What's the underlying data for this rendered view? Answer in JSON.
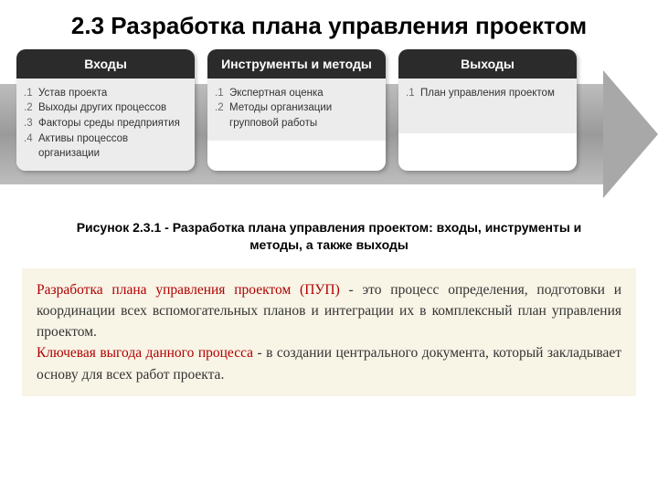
{
  "title": "2.3 Разработка плана управления проектом",
  "diagram": {
    "arrow_gradient_top": "#bdbdbd",
    "arrow_gradient_mid": "#9a9a9a",
    "arrow_head_color": "#a8a8a8",
    "header_bg": "#2b2b2b",
    "header_fg": "#ffffff",
    "body_bg": "#ececec",
    "body_fg": "#333333",
    "num_color": "#6b6b6b",
    "boxes": [
      {
        "title": "Входы",
        "items": [
          {
            "n": ".1",
            "t": "Устав проекта"
          },
          {
            "n": ".2",
            "t": "Выходы других процессов"
          },
          {
            "n": ".3",
            "t": "Факторы среды предприятия"
          },
          {
            "n": ".4",
            "t": "Активы процессов организации"
          }
        ]
      },
      {
        "title": "Инструменты и методы",
        "items": [
          {
            "n": ".1",
            "t": "Экспертная оценка"
          },
          {
            "n": ".2",
            "t": "Методы организации групповой работы"
          }
        ]
      },
      {
        "title": "Выходы",
        "items": [
          {
            "n": ".1",
            "t": "План управления проектом"
          }
        ]
      }
    ]
  },
  "caption_prefix": "Рисунок 2.3.1 - ",
  "caption_rest": "Разработка плана управления проектом: входы, инструменты и методы, а также выходы",
  "textblock": {
    "bg": "#f8f4e6",
    "red": "#b00000",
    "p1_red": "Разработка плана управления проектом (ПУП)",
    "p1_rest": " - это процесс определения, подготовки и координации всех вспомогательных планов и интеграции их в комплексный план управления проектом.",
    "p2_red": "Ключевая выгода данного процесса",
    "p2_rest": " - в создании центрального документа, который закладывает основу для всех работ проекта."
  }
}
